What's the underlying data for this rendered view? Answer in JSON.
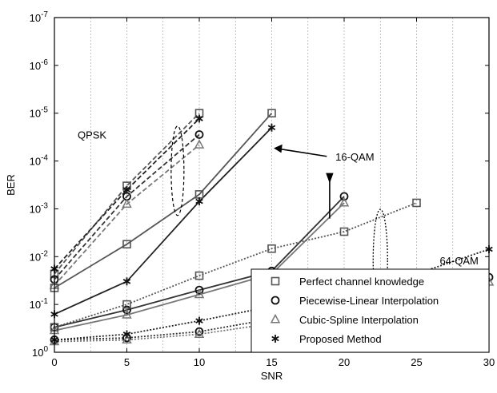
{
  "chart_data": {
    "type": "line",
    "title": "",
    "xlabel": "SNR",
    "ylabel": "BER",
    "xlim": [
      0,
      30
    ],
    "ylim_log10": [
      -7,
      0
    ],
    "yscale": "log",
    "grid": true,
    "x_ticks": [
      "0",
      "5",
      "10",
      "15",
      "20",
      "25",
      "30"
    ],
    "y_tick_exponents": [
      "0",
      "-1",
      "-2",
      "-3",
      "-4",
      "-5",
      "-6",
      "-7"
    ],
    "y_tick_base": "10",
    "legend": {
      "placement": "bottom-right",
      "entries": [
        {
          "label": "Perfect channel knowledge",
          "marker": "square"
        },
        {
          "label": "Piecewise-Linear Interpolation",
          "marker": "circle"
        },
        {
          "label": "Cubic-Spline Interpolation",
          "marker": "triangle"
        },
        {
          "label": "Proposed Method",
          "marker": "star"
        }
      ]
    },
    "annotations": [
      {
        "text": "QPSK",
        "x": 1.6,
        "y": 2.8e-05
      },
      {
        "text": "16-QAM",
        "x": 19.4,
        "y": 8e-05
      },
      {
        "text": "64-QAM",
        "x": 26.6,
        "y": 0.012
      }
    ],
    "series": [
      {
        "group": "QPSK",
        "marker": "square",
        "color": "#555555",
        "dash": "6,3",
        "x": [
          0,
          5,
          10
        ],
        "y": [
          0.023,
          0.00033,
          1e-05
        ]
      },
      {
        "group": "QPSK",
        "marker": "circle",
        "color": "#333333",
        "dash": "6,3",
        "x": [
          0,
          5,
          10
        ],
        "y": [
          0.03,
          0.00055,
          2.8e-05
        ]
      },
      {
        "group": "QPSK",
        "marker": "triangle",
        "color": "#777777",
        "dash": "6,3",
        "x": [
          0,
          5,
          10
        ],
        "y": [
          0.04,
          0.0008,
          4.6e-05
        ]
      },
      {
        "group": "QPSK",
        "marker": "star",
        "color": "#222222",
        "dash": "6,3",
        "x": [
          0,
          5,
          10
        ],
        "y": [
          0.018,
          0.0004,
          1.3e-05
        ]
      },
      {
        "group": "16-QAM",
        "marker": "square",
        "color": "#555555",
        "dash": "",
        "x": [
          0,
          5,
          10,
          15
        ],
        "y": [
          0.045,
          0.0055,
          0.0005,
          1e-05
        ]
      },
      {
        "group": "16-QAM",
        "marker": "circle",
        "color": "#333333",
        "dash": "",
        "x": [
          0,
          5,
          10,
          15,
          20
        ],
        "y": [
          0.3,
          0.13,
          0.05,
          0.02,
          0.00055
        ]
      },
      {
        "group": "16-QAM",
        "marker": "triangle",
        "color": "#777777",
        "dash": "",
        "x": [
          0,
          5,
          10,
          15,
          20
        ],
        "y": [
          0.35,
          0.165,
          0.062,
          0.023,
          0.00075
        ]
      },
      {
        "group": "16-QAM",
        "marker": "star",
        "color": "#222222",
        "dash": "",
        "x": [
          0,
          5,
          10,
          15
        ],
        "y": [
          0.16,
          0.033,
          0.0007,
          2e-05
        ]
      },
      {
        "group": "64-QAM",
        "marker": "square",
        "color": "#555555",
        "dash": "2,2",
        "x": [
          0,
          5,
          10,
          15,
          20,
          25
        ],
        "y": [
          0.3,
          0.1,
          0.025,
          0.0068,
          0.003,
          0.00075
        ]
      },
      {
        "group": "64-QAM",
        "marker": "circle",
        "color": "#333333",
        "dash": "2,2",
        "x": [
          0,
          5,
          10,
          15,
          20,
          25,
          30
        ],
        "y": [
          0.55,
          0.5,
          0.37,
          0.2,
          0.105,
          0.065,
          0.027
        ]
      },
      {
        "group": "64-QAM",
        "marker": "triangle",
        "color": "#777777",
        "dash": "2,2",
        "x": [
          0,
          5,
          10,
          15,
          20,
          25,
          30
        ],
        "y": [
          0.6,
          0.55,
          0.42,
          0.25,
          0.14,
          0.09,
          0.034
        ]
      },
      {
        "group": "64-QAM",
        "marker": "star",
        "color": "#222222",
        "dash": "2,2",
        "x": [
          0,
          5,
          10,
          15,
          20,
          25,
          30
        ],
        "y": [
          0.55,
          0.42,
          0.22,
          0.11,
          0.045,
          0.023,
          0.007
        ]
      }
    ]
  }
}
